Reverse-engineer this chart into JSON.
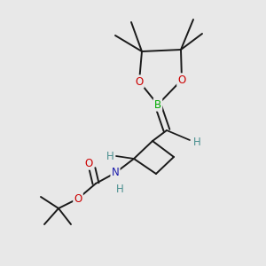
{
  "background_color": "#e8e8e8",
  "atom_colors": {
    "C": "#000000",
    "H": "#4a9090",
    "O": "#cc0000",
    "N": "#1a1aaa",
    "B": "#00aa00"
  },
  "bond_color": "#1a1a1a",
  "bond_width": 1.4,
  "figsize": [
    3.0,
    3.0
  ],
  "dpi": 100
}
